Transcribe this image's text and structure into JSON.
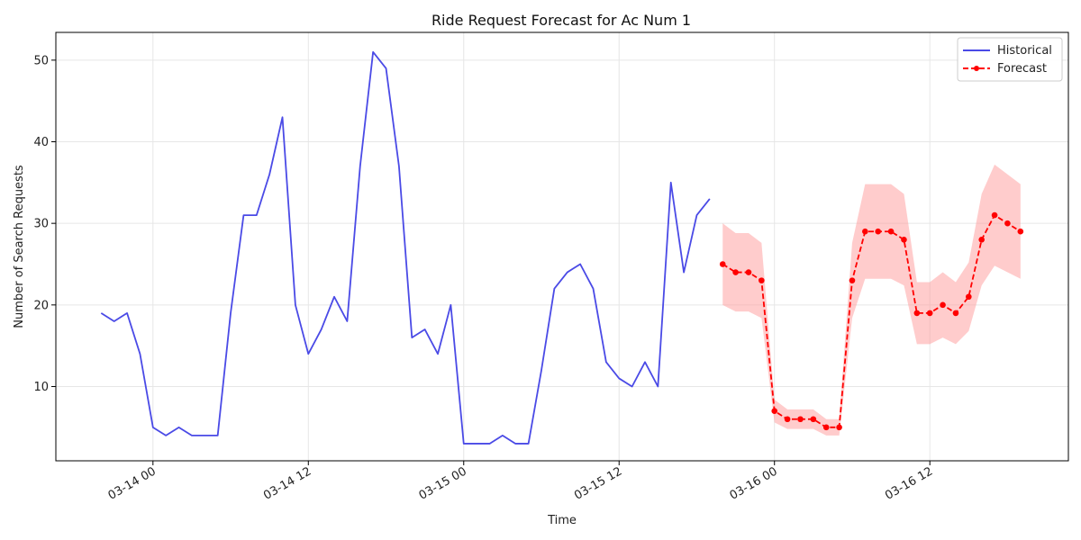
{
  "chart_data": {
    "type": "line",
    "title": "Ride Request Forecast for Ac Num 1",
    "xlabel": "Time",
    "ylabel": "Number of Search Requests",
    "x_unit": "hours since 03-14 00:00",
    "xlim": [
      -7.5,
      70.7
    ],
    "ylim": [
      0.9,
      53.4
    ],
    "x_ticks": [
      {
        "value": 0,
        "label": "03-14 00"
      },
      {
        "value": 12,
        "label": "03-14 12"
      },
      {
        "value": 24,
        "label": "03-15 00"
      },
      {
        "value": 36,
        "label": "03-15 12"
      },
      {
        "value": 48,
        "label": "03-16 00"
      },
      {
        "value": 60,
        "label": "03-16 12"
      }
    ],
    "y_ticks": [
      10,
      20,
      30,
      40,
      50
    ],
    "grid": true,
    "legend": "top-right",
    "series": [
      {
        "name": "Historical",
        "style": "line",
        "color": "#4a4ae6",
        "x": [
          -4,
          -3,
          -2,
          -1,
          0,
          1,
          2,
          3,
          4,
          5,
          6,
          7,
          8,
          9,
          10,
          11,
          12,
          13,
          14,
          15,
          16,
          17,
          18,
          19,
          20,
          21,
          22,
          23,
          24,
          25,
          26,
          27,
          28,
          29,
          30,
          31,
          32,
          33,
          34,
          35,
          36,
          37,
          38,
          39,
          40,
          41,
          42,
          43
        ],
        "y": [
          19,
          18,
          19,
          14,
          5,
          4,
          5,
          4,
          4,
          4,
          19,
          31,
          31,
          36,
          43,
          20,
          14,
          17,
          21,
          18,
          37,
          51,
          49,
          37,
          16,
          17,
          14,
          20,
          3,
          3,
          3,
          4,
          3,
          3,
          12,
          22,
          24,
          25,
          22,
          13,
          11,
          10,
          13,
          10,
          35,
          24,
          31,
          33
        ]
      },
      {
        "name": "Forecast",
        "style": "dashed-line-markers",
        "color": "#ff0000",
        "x": [
          44,
          45,
          46,
          47,
          48,
          49,
          50,
          51,
          52,
          53,
          54,
          55,
          56,
          57,
          58,
          59,
          60,
          61,
          62,
          63,
          64,
          65,
          66,
          67
        ],
        "y": [
          25,
          24,
          24,
          23,
          7,
          6,
          6,
          6,
          5,
          5,
          23,
          29,
          29,
          29,
          28,
          19,
          19,
          20,
          19,
          21,
          28,
          31,
          30,
          29
        ],
        "lower": [
          20,
          19.2,
          19.2,
          18.4,
          5.6,
          4.8,
          4.8,
          4.8,
          4,
          4,
          18.4,
          23.2,
          23.2,
          23.2,
          22.4,
          15.2,
          15.2,
          16,
          15.2,
          16.8,
          22.4,
          24.8,
          24,
          23.2
        ],
        "upper": [
          30,
          28.8,
          28.8,
          27.6,
          8.4,
          7.2,
          7.2,
          7.2,
          6,
          6,
          27.6,
          34.8,
          34.8,
          34.8,
          33.6,
          22.8,
          22.8,
          24,
          22.8,
          25.2,
          33.6,
          37.2,
          36,
          34.8
        ]
      }
    ],
    "band_color": "#ff9999"
  }
}
